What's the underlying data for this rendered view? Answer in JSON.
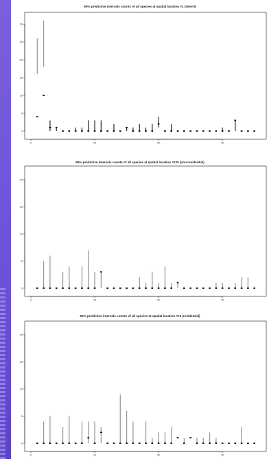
{
  "style": {
    "accent": "#7c5fe0",
    "interval_color": "#9a9a9a",
    "interval_color_dark": "#333333",
    "point_color": "#000000"
  },
  "chart_data": [
    {
      "type": "interval",
      "title": "95% predictive intervals counts of all species at spatial location #1 (desert)",
      "xlim": [
        0,
        36
      ],
      "ylim": [
        0,
        31
      ],
      "xticks": [
        0,
        10,
        20,
        30
      ],
      "yticks": [
        0,
        5,
        10,
        15,
        20,
        25,
        30
      ],
      "x": [
        1,
        2,
        3,
        4,
        5,
        6,
        7,
        8,
        9,
        10,
        11,
        12,
        13,
        14,
        15,
        16,
        17,
        18,
        19,
        20,
        21,
        22,
        23,
        24,
        25,
        26,
        27,
        28,
        29,
        30,
        31,
        32,
        33,
        34,
        35
      ],
      "lower": [
        16,
        18,
        0,
        0,
        0,
        0,
        0,
        0,
        0,
        0,
        0,
        0,
        0,
        0,
        0,
        0,
        0,
        0,
        0,
        1,
        0,
        0,
        0,
        0,
        0,
        0,
        0,
        0,
        0,
        0,
        0,
        0,
        0,
        0,
        0
      ],
      "upper": [
        26,
        31,
        3,
        1,
        0,
        0,
        1,
        1,
        3,
        3,
        3,
        0,
        2,
        0,
        1,
        1,
        2,
        1,
        2,
        4,
        0,
        2,
        0,
        0,
        0,
        0,
        0,
        0,
        0,
        1,
        0,
        3,
        0,
        0,
        0
      ],
      "point": [
        4,
        10,
        1,
        1,
        0,
        0,
        0,
        0,
        0,
        0,
        0,
        0,
        0,
        0,
        1,
        0,
        0,
        0,
        0,
        2,
        0,
        0,
        0,
        0,
        0,
        0,
        0,
        0,
        0,
        0,
        0,
        3,
        0,
        0,
        0
      ]
    },
    {
      "type": "interval",
      "title": "95% predictive intervals counts of all species at spatial location #120 (non-residential)",
      "xlim": [
        0,
        36
      ],
      "ylim": [
        0,
        21
      ],
      "xticks": [
        0,
        10,
        20,
        30
      ],
      "yticks": [
        0,
        5,
        10,
        15,
        20
      ],
      "x": [
        1,
        2,
        3,
        4,
        5,
        6,
        7,
        8,
        9,
        10,
        11,
        12,
        13,
        14,
        15,
        16,
        17,
        18,
        19,
        20,
        21,
        22,
        23,
        24,
        25,
        26,
        27,
        28,
        29,
        30,
        31,
        32,
        33,
        34,
        35
      ],
      "lower": [
        0,
        0,
        0,
        0,
        0,
        0,
        0,
        0,
        0,
        0,
        0,
        0,
        0,
        0,
        0,
        0,
        0,
        0,
        0,
        0,
        0,
        0,
        0,
        0,
        0,
        0,
        0,
        0,
        0,
        0,
        0,
        0,
        0,
        0,
        0
      ],
      "upper": [
        0,
        5,
        6,
        0,
        3,
        4,
        0,
        4,
        7,
        3,
        3,
        0,
        0,
        0,
        0,
        0,
        2,
        1,
        3,
        1,
        4,
        1,
        1,
        0,
        0,
        0,
        0,
        0,
        1,
        1,
        0,
        1,
        2,
        2,
        0
      ],
      "point": [
        0,
        0,
        0,
        0,
        0,
        0,
        0,
        0,
        0,
        0,
        3,
        0,
        0,
        0,
        0,
        0,
        0,
        0,
        0,
        0,
        0,
        0,
        1,
        0,
        0,
        0,
        0,
        0,
        0,
        0,
        0,
        0,
        0,
        0,
        0
      ],
      "extra_upper": [
        {
          "x": 35,
          "upper": 3
        }
      ]
    },
    {
      "type": "interval",
      "title": "95% predictive intervals counts of all species at spatial location #73 (residential)",
      "xlim": [
        0,
        36
      ],
      "ylim": [
        0,
        21
      ],
      "xticks": [
        0,
        10,
        20,
        30
      ],
      "yticks": [
        0,
        5,
        10,
        15,
        20
      ],
      "x": [
        1,
        2,
        3,
        4,
        5,
        6,
        7,
        8,
        9,
        10,
        11,
        12,
        13,
        14,
        15,
        16,
        17,
        18,
        19,
        20,
        21,
        22,
        23,
        24,
        25,
        26,
        27,
        28,
        29,
        30,
        31,
        32,
        33,
        34,
        35
      ],
      "lower": [
        0,
        0,
        0,
        0,
        0,
        0,
        0,
        0,
        0,
        0,
        0,
        0,
        0,
        0,
        0,
        0,
        0,
        0,
        0,
        0,
        0,
        0,
        0,
        0,
        0,
        0,
        0,
        0,
        0,
        0,
        0,
        0,
        0,
        0,
        0
      ],
      "upper": [
        0,
        4,
        5,
        0,
        3,
        5,
        0,
        4,
        4,
        4,
        3,
        0,
        0,
        9,
        6,
        4,
        0,
        4,
        1,
        2,
        2,
        3,
        0,
        1,
        0,
        1,
        1,
        2,
        1,
        0,
        0,
        0,
        3,
        0,
        0
      ],
      "point": [
        0,
        0,
        0,
        0,
        0,
        0,
        0,
        0,
        1,
        0,
        2,
        0,
        0,
        0,
        0,
        0,
        0,
        0,
        0,
        0,
        0,
        0,
        1,
        0,
        1,
        0,
        0,
        0,
        0,
        0,
        0,
        0,
        0,
        0,
        0
      ]
    }
  ]
}
